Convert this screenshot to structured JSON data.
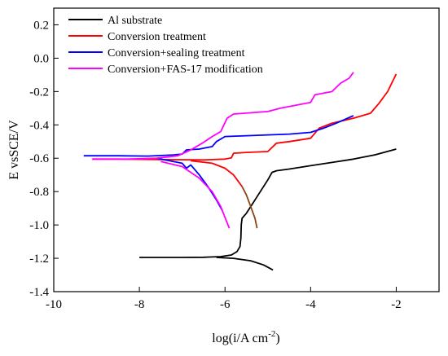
{
  "chart_data": {
    "type": "line",
    "title": "",
    "xlabel": "log(i/A cm",
    "xlabel_sup": "-2",
    "xlabel_end": ")",
    "ylabel": "E vsSCE/V",
    "xlim": [
      -10,
      -1
    ],
    "ylim": [
      -1.4,
      0.3
    ],
    "xticks": [
      -10,
      -8,
      -6,
      -4,
      -2
    ],
    "xtick_labels": [
      "-10",
      "-8",
      "-6",
      "-4",
      "-2"
    ],
    "yticks": [
      0.2,
      0.0,
      -0.2,
      -0.4,
      -0.6,
      -0.8,
      -1.0,
      -1.2,
      -1.4
    ],
    "ytick_labels": [
      "0.2",
      "0.0",
      "-0.2",
      "-0.4",
      "-0.6",
      "-0.8",
      "-1.0",
      "-1.2",
      "-1.4"
    ],
    "grid": false,
    "legend_position": "top-left",
    "series": [
      {
        "name": "Al substrate",
        "color": "#000000",
        "segments": [
          [
            [
              -8.0,
              -1.195
            ],
            [
              -7.0,
              -1.195
            ],
            [
              -6.5,
              -1.194
            ],
            [
              -6.1,
              -1.19
            ],
            [
              -5.85,
              -1.18
            ],
            [
              -5.72,
              -1.16
            ],
            [
              -5.65,
              -1.13
            ],
            [
              -5.63,
              -1.08
            ],
            [
              -5.62,
              -1.0
            ],
            [
              -5.6,
              -0.96
            ],
            [
              -5.5,
              -0.93
            ],
            [
              -5.4,
              -0.89
            ],
            [
              -5.2,
              -0.81
            ],
            [
              -5.0,
              -0.73
            ],
            [
              -4.9,
              -0.685
            ],
            [
              -4.8,
              -0.675
            ],
            [
              -4.5,
              -0.665
            ],
            [
              -4.0,
              -0.645
            ],
            [
              -3.5,
              -0.625
            ],
            [
              -3.0,
              -0.605
            ],
            [
              -2.5,
              -0.58
            ],
            [
              -2.0,
              -0.545
            ]
          ],
          [
            [
              -6.2,
              -1.195
            ],
            [
              -5.8,
              -1.2
            ],
            [
              -5.4,
              -1.215
            ],
            [
              -5.1,
              -1.24
            ],
            [
              -4.88,
              -1.27
            ]
          ]
        ]
      },
      {
        "name": "Conversion treatment",
        "color": "#ff0000",
        "segments": [
          [
            [
              -9.1,
              -0.605
            ],
            [
              -8.5,
              -0.605
            ],
            [
              -7.5,
              -0.608
            ],
            [
              -6.5,
              -0.61
            ],
            [
              -6.0,
              -0.605
            ],
            [
              -5.85,
              -0.598
            ],
            [
              -5.8,
              -0.57
            ],
            [
              -5.5,
              -0.565
            ],
            [
              -5.0,
              -0.56
            ],
            [
              -4.8,
              -0.51
            ],
            [
              -4.5,
              -0.5
            ],
            [
              -4.0,
              -0.48
            ],
            [
              -3.8,
              -0.42
            ],
            [
              -3.5,
              -0.39
            ],
            [
              -3.0,
              -0.36
            ],
            [
              -2.6,
              -0.33
            ],
            [
              -2.4,
              -0.27
            ],
            [
              -2.2,
              -0.2
            ],
            [
              -2.0,
              -0.095
            ]
          ],
          [
            [
              -6.8,
              -0.615
            ],
            [
              -6.3,
              -0.63
            ],
            [
              -6.0,
              -0.66
            ],
            [
              -5.8,
              -0.7
            ],
            [
              -5.6,
              -0.77
            ]
          ]
        ]
      },
      {
        "name": "Conversion+sealing treatment",
        "color": "#0000ff",
        "segments": [
          [
            [
              -9.3,
              -0.585
            ],
            [
              -8.5,
              -0.585
            ],
            [
              -7.8,
              -0.587
            ],
            [
              -7.2,
              -0.58
            ],
            [
              -7.0,
              -0.575
            ],
            [
              -6.9,
              -0.55
            ],
            [
              -6.6,
              -0.545
            ],
            [
              -6.3,
              -0.53
            ],
            [
              -6.2,
              -0.5
            ],
            [
              -6.0,
              -0.47
            ],
            [
              -5.5,
              -0.465
            ],
            [
              -4.5,
              -0.455
            ],
            [
              -4.0,
              -0.445
            ],
            [
              -3.7,
              -0.42
            ],
            [
              -3.4,
              -0.39
            ],
            [
              -3.0,
              -0.345
            ]
          ],
          [
            [
              -7.6,
              -0.6
            ],
            [
              -7.0,
              -0.63
            ],
            [
              -6.9,
              -0.66
            ],
            [
              -6.8,
              -0.64
            ],
            [
              -6.6,
              -0.7
            ],
            [
              -6.4,
              -0.77
            ],
            [
              -6.2,
              -0.85
            ],
            [
              -6.05,
              -0.92
            ]
          ]
        ]
      },
      {
        "name": "Conversion+FAS-17 modification",
        "color": "#ff00ff",
        "segments": [
          [
            [
              -9.1,
              -0.605
            ],
            [
              -8.3,
              -0.605
            ],
            [
              -7.6,
              -0.6
            ],
            [
              -7.1,
              -0.585
            ],
            [
              -6.8,
              -0.55
            ],
            [
              -6.5,
              -0.505
            ],
            [
              -6.3,
              -0.47
            ],
            [
              -6.1,
              -0.44
            ],
            [
              -5.95,
              -0.36
            ],
            [
              -5.8,
              -0.335
            ],
            [
              -5.0,
              -0.32
            ],
            [
              -4.7,
              -0.3
            ],
            [
              -4.0,
              -0.265
            ],
            [
              -3.9,
              -0.22
            ],
            [
              -3.5,
              -0.2
            ],
            [
              -3.3,
              -0.15
            ],
            [
              -3.1,
              -0.12
            ],
            [
              -3.0,
              -0.085
            ]
          ],
          [
            [
              -7.5,
              -0.62
            ],
            [
              -7.0,
              -0.65
            ],
            [
              -6.6,
              -0.72
            ],
            [
              -6.3,
              -0.8
            ],
            [
              -6.1,
              -0.89
            ],
            [
              -5.9,
              -1.02
            ]
          ]
        ]
      },
      {
        "name": "",
        "color": "#8b4513",
        "segments": [
          [
            [
              -5.6,
              -0.77
            ],
            [
              -5.5,
              -0.82
            ],
            [
              -5.4,
              -0.89
            ],
            [
              -5.3,
              -0.96
            ],
            [
              -5.25,
              -1.02
            ]
          ]
        ]
      }
    ]
  }
}
